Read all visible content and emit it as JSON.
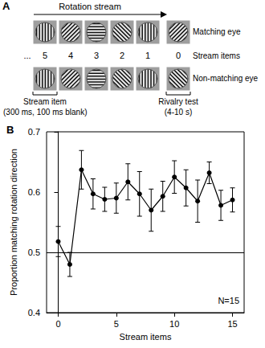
{
  "diagram": {
    "panel_label": "A",
    "stream_title": "Rotation stream",
    "rows": [
      {
        "label": "Matching eye",
        "stream_orientations": [
          90,
          45,
          0,
          135,
          90
        ],
        "test_orientation": 45
      },
      {
        "label": "Non-matching eye",
        "stream_orientations": [
          90,
          45,
          0,
          135,
          90
        ],
        "test_orientation": 135
      }
    ],
    "ellipsis": "...",
    "item_numbers": [
      "5",
      "4",
      "3",
      "2",
      "1",
      "0"
    ],
    "item_numbers_label": "Stream items",
    "stream_item_label": "Stream item",
    "stream_item_timing": "(300 ms, 100 ms blank)",
    "test_label": "Rivalry test",
    "test_timing": "(4-10 s)"
  },
  "chart_data": {
    "type": "line",
    "title": "B",
    "x_label": "Stream items",
    "y_label": "Proportion matching rotation direction",
    "x": [
      0,
      1,
      2,
      3,
      4,
      5,
      6,
      7,
      8,
      9,
      10,
      11,
      12,
      13,
      14,
      15
    ],
    "values": [
      0.518,
      0.48,
      0.637,
      0.597,
      0.588,
      0.59,
      0.617,
      0.597,
      0.57,
      0.593,
      0.625,
      0.607,
      0.585,
      0.632,
      0.578,
      0.587
    ],
    "errors": [
      0.025,
      0.02,
      0.032,
      0.025,
      0.02,
      0.025,
      0.03,
      0.037,
      0.035,
      0.025,
      0.027,
      0.03,
      0.035,
      0.018,
      0.025,
      0.02
    ],
    "color": "#000000",
    "marker": "circle",
    "hline": 0.5,
    "annotations": [
      "N=15"
    ],
    "xlim": [
      -1,
      16
    ],
    "xticks": [
      0,
      5,
      10,
      15
    ],
    "ylim": [
      0.4,
      0.7
    ],
    "yticks": [
      0.4,
      0.5,
      0.6,
      0.7
    ],
    "grid": false
  }
}
